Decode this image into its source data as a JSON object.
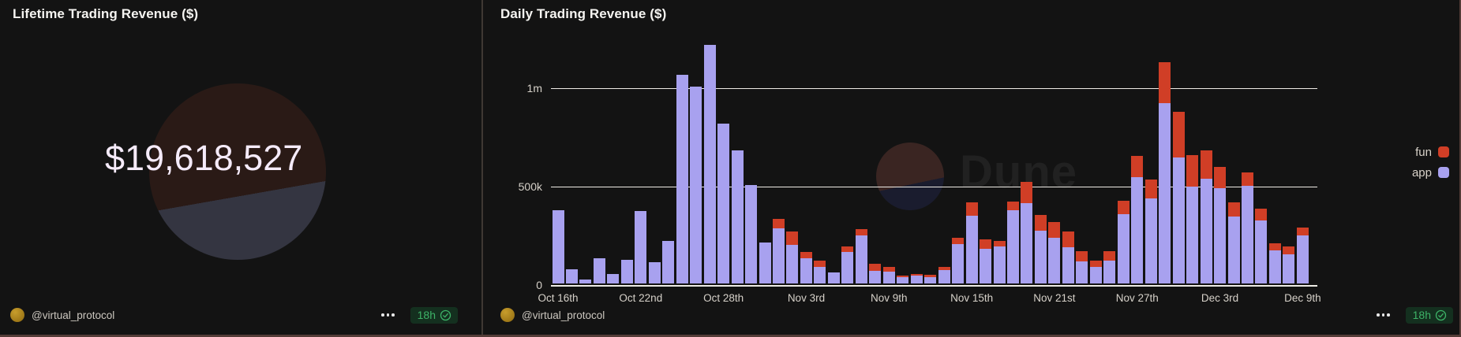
{
  "left_panel": {
    "title": "Lifetime Trading Revenue ($)",
    "value": "$19,618,527",
    "footer": {
      "author": "@virtual_protocol",
      "age": "18h"
    }
  },
  "right_panel": {
    "title": "Daily Trading Revenue ($)",
    "watermark_text": "Dune",
    "footer": {
      "author": "@virtual_protocol",
      "age": "18h"
    }
  },
  "colors": {
    "background": "#131313",
    "app_series": "#a8a1ef",
    "fun_series": "#d03e26",
    "gridline": "#efece6",
    "badge_green": "#3db267",
    "avatar_gold": "#b5841c",
    "watermark_maroon": "#2a1a16",
    "watermark_slate": "#343541"
  },
  "chart_data": [
    {
      "type": "counter",
      "title": "Lifetime Trading Revenue ($)",
      "value": 19618527,
      "display_value": "$19,618,527"
    },
    {
      "type": "bar",
      "stacked": true,
      "title": "Daily Trading Revenue ($)",
      "ylabel": "",
      "xlabel": "",
      "ylim": [
        0,
        1250000
      ],
      "grid": "horizontal",
      "legend_position": "right",
      "legend": [
        {
          "label": "fun",
          "color": "#d03e26"
        },
        {
          "label": "app",
          "color": "#a8a1ef"
        }
      ],
      "y_ticks": [
        {
          "label": "0",
          "value": 0
        },
        {
          "label": "500k",
          "value": 500000
        },
        {
          "label": "1m",
          "value": 1000000
        }
      ],
      "x_tick_labels": [
        "Oct 16th",
        "Oct 22nd",
        "Oct 28th",
        "Nov 3rd",
        "Nov 9th",
        "Nov 15th",
        "Nov 21st",
        "Nov 27th",
        "Dec 3rd",
        "Dec 9th"
      ],
      "x_tick_indices": [
        0,
        6,
        12,
        18,
        24,
        30,
        36,
        42,
        48,
        54
      ],
      "x": [
        "Oct 16",
        "Oct 17",
        "Oct 18",
        "Oct 19",
        "Oct 20",
        "Oct 21",
        "Oct 22",
        "Oct 23",
        "Oct 24",
        "Oct 25",
        "Oct 26",
        "Oct 27",
        "Oct 28",
        "Oct 29",
        "Oct 30",
        "Oct 31",
        "Nov 1",
        "Nov 2",
        "Nov 3",
        "Nov 4",
        "Nov 5",
        "Nov 6",
        "Nov 7",
        "Nov 8",
        "Nov 9",
        "Nov 10",
        "Nov 11",
        "Nov 12",
        "Nov 13",
        "Nov 14",
        "Nov 15",
        "Nov 16",
        "Nov 17",
        "Nov 18",
        "Nov 19",
        "Nov 20",
        "Nov 21",
        "Nov 22",
        "Nov 23",
        "Nov 24",
        "Nov 25",
        "Nov 26",
        "Nov 27",
        "Nov 28",
        "Nov 29",
        "Nov 30",
        "Dec 1",
        "Dec 2",
        "Dec 3",
        "Dec 4",
        "Dec 5",
        "Dec 6",
        "Dec 7",
        "Dec 8",
        "Dec 9"
      ],
      "series": [
        {
          "name": "app",
          "color": "#a8a1ef",
          "values": [
            370000,
            70000,
            18000,
            125000,
            45000,
            120000,
            365000,
            105000,
            215000,
            1060000,
            1000000,
            1210000,
            810000,
            675000,
            500000,
            205000,
            279000,
            194000,
            128000,
            84000,
            53000,
            157000,
            243000,
            64000,
            57000,
            31000,
            37000,
            31000,
            66000,
            199000,
            343000,
            173000,
            186000,
            372000,
            406000,
            266000,
            230000,
            184000,
            110000,
            84000,
            114000,
            350000,
            540000,
            430000,
            915000,
            638000,
            492000,
            532000,
            483000,
            340000,
            496000,
            319000,
            168000,
            146000,
            243000
          ]
        },
        {
          "name": "fun",
          "color": "#d03e26",
          "values": [
            0,
            0,
            0,
            0,
            0,
            0,
            0,
            0,
            0,
            0,
            0,
            0,
            0,
            0,
            0,
            0,
            47000,
            69000,
            29000,
            30000,
            0,
            29000,
            31000,
            33000,
            27000,
            6000,
            11000,
            13000,
            18000,
            31000,
            69000,
            50000,
            27000,
            44000,
            110000,
            80000,
            80000,
            79000,
            53000,
            31000,
            49000,
            70000,
            105000,
            96000,
            209000,
            234000,
            160000,
            141000,
            106000,
            72000,
            66000,
            60000,
            36000,
            40000,
            40000
          ]
        }
      ]
    }
  ]
}
